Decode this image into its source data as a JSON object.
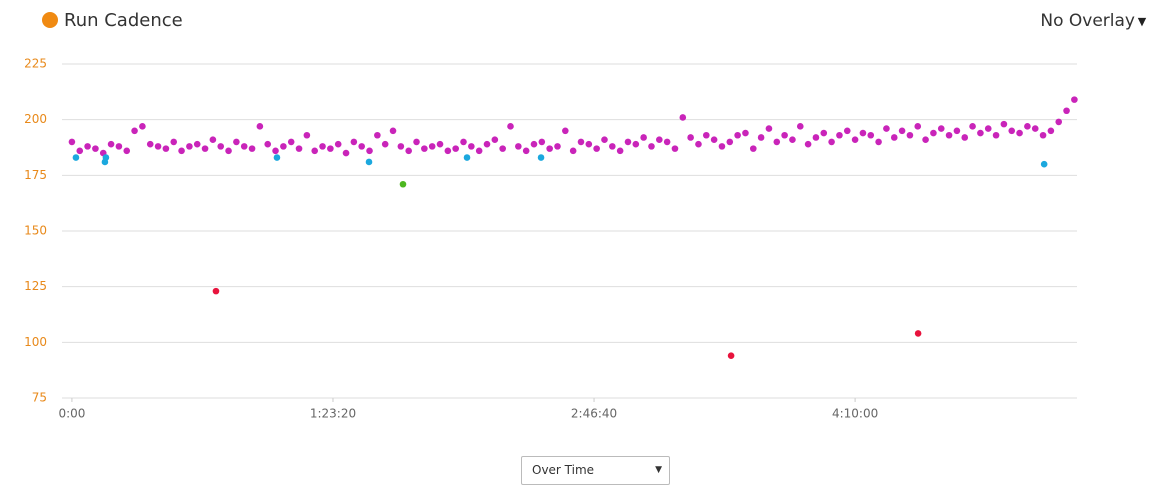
{
  "chart_data": {
    "type": "scatter",
    "title": "Run Cadence",
    "xlim": [
      -190,
      19250
    ],
    "ylim": [
      75,
      225
    ],
    "xticks": [
      {
        "value": 0,
        "label": "0:00"
      },
      {
        "value": 5000,
        "label": "1:23:20"
      },
      {
        "value": 10000,
        "label": "2:46:40"
      },
      {
        "value": 15000,
        "label": "4:10:00"
      }
    ],
    "yticks": [
      75,
      100,
      125,
      150,
      175,
      200,
      225
    ],
    "grid": true,
    "series": [
      {
        "color": "#c924b9",
        "x": [
          0,
          150,
          300,
          450,
          600,
          750,
          900,
          1050,
          1200,
          1350,
          1500,
          1650,
          1800,
          1950,
          2100,
          2250,
          2400,
          2550,
          2700,
          2850,
          3000,
          3150,
          3300,
          3450,
          3600,
          3750,
          3900,
          4050,
          4200,
          4350,
          4500,
          4650,
          4800,
          4950,
          5100,
          5250,
          5400,
          5550,
          5700,
          5850,
          6000,
          6150,
          6300,
          6450,
          6600,
          6750,
          6900,
          7050,
          7200,
          7350,
          7500,
          7650,
          7800,
          7950,
          8100,
          8250,
          8400,
          8550,
          8700,
          8850,
          9000,
          9150,
          9300,
          9450,
          9600,
          9750,
          9900,
          10050,
          10200,
          10350,
          10500,
          10650,
          10800,
          10950,
          11100,
          11250,
          11400,
          11550,
          11700,
          11850,
          12000,
          12150,
          12300,
          12450,
          12600,
          12750,
          12900,
          13050,
          13200,
          13350,
          13500,
          13650,
          13800,
          13950,
          14100,
          14250,
          14400,
          14550,
          14700,
          14850,
          15000,
          15150,
          15300,
          15450,
          15600,
          15750,
          15900,
          16050,
          16200,
          16350,
          16500,
          16650,
          16800,
          16950,
          17100,
          17250,
          17400,
          17550,
          17700,
          17850,
          18000,
          18150,
          18300,
          18450,
          18600,
          18750,
          18900,
          19050,
          19200
        ],
        "values": [
          190,
          186,
          188,
          187,
          185,
          189,
          188,
          186,
          195,
          197,
          189,
          188,
          187,
          190,
          186,
          188,
          189,
          187,
          191,
          188,
          186,
          190,
          188,
          187,
          197,
          189,
          186,
          188,
          190,
          187,
          193,
          186,
          188,
          187,
          189,
          185,
          190,
          188,
          186,
          193,
          189,
          195,
          188,
          186,
          190,
          187,
          188,
          189,
          186,
          187,
          190,
          188,
          186,
          189,
          191,
          187,
          197,
          188,
          186,
          189,
          190,
          187,
          188,
          195,
          186,
          190,
          189,
          187,
          191,
          188,
          186,
          190,
          189,
          192,
          188,
          191,
          190,
          187,
          201,
          192,
          189,
          193,
          191,
          188,
          190,
          193,
          194,
          187,
          192,
          196,
          190,
          193,
          191,
          197,
          189,
          192,
          194,
          190,
          193,
          195,
          191,
          194,
          193,
          190,
          196,
          192,
          195,
          193,
          197,
          191,
          194,
          196,
          193,
          195,
          192,
          197,
          194,
          196,
          193,
          198,
          195,
          194,
          197,
          196,
          193,
          195,
          199,
          204,
          209
        ]
      },
      {
        "color": "#1ba8de",
        "x": [
          77,
          632,
          651,
          3927,
          5690,
          7567,
          8985,
          18621
        ],
        "values": [
          183,
          181,
          183,
          183,
          181,
          183,
          183,
          180
        ]
      },
      {
        "color": "#4cb71f",
        "x": [
          6341
        ],
        "values": [
          171
        ]
      },
      {
        "color": "#e8133d",
        "x": [
          2759,
          12625,
          16207
        ],
        "values": [
          123,
          94,
          104
        ]
      }
    ]
  },
  "controls": {
    "overlay": "No Overlay",
    "view": "Over Time"
  }
}
